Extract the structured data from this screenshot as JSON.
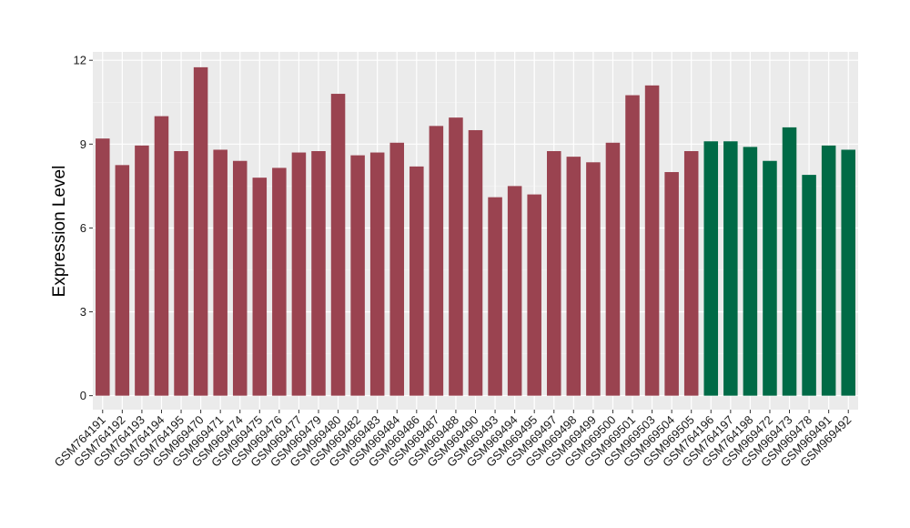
{
  "chart_data": {
    "type": "bar",
    "title": "",
    "xlabel": "",
    "ylabel": "Expression Level",
    "ylim": [
      -0.5,
      12.3
    ],
    "yticks": [
      0,
      3,
      6,
      9,
      12
    ],
    "grid": true,
    "background": "#EBEBEB",
    "colors": {
      "group1": "#9A4350",
      "group2": "#006A46"
    },
    "categories": [
      "GSM764191",
      "GSM764192",
      "GSM764193",
      "GSM764194",
      "GSM764195",
      "GSM969470",
      "GSM969471",
      "GSM969474",
      "GSM969475",
      "GSM969476",
      "GSM969477",
      "GSM969479",
      "GSM969480",
      "GSM969482",
      "GSM969483",
      "GSM969484",
      "GSM969486",
      "GSM969487",
      "GSM969488",
      "GSM969490",
      "GSM969493",
      "GSM969494",
      "GSM969495",
      "GSM969497",
      "GSM969498",
      "GSM969499",
      "GSM969500",
      "GSM969501",
      "GSM969503",
      "GSM969504",
      "GSM969505",
      "GSM764196",
      "GSM764197",
      "GSM764198",
      "GSM969472",
      "GSM969473",
      "GSM969478",
      "GSM969491",
      "GSM969492"
    ],
    "values": [
      9.2,
      8.25,
      8.95,
      10.0,
      8.75,
      11.75,
      8.8,
      8.4,
      7.8,
      8.15,
      8.7,
      8.75,
      10.8,
      8.6,
      8.7,
      9.05,
      8.2,
      9.65,
      9.95,
      9.5,
      7.1,
      7.5,
      7.2,
      8.75,
      8.55,
      8.35,
      9.05,
      10.75,
      11.1,
      8.0,
      8.75,
      9.1,
      9.1,
      8.9,
      8.4,
      9.6,
      7.9,
      8.95,
      8.8
    ],
    "groups": [
      "group1",
      "group1",
      "group1",
      "group1",
      "group1",
      "group1",
      "group1",
      "group1",
      "group1",
      "group1",
      "group1",
      "group1",
      "group1",
      "group1",
      "group1",
      "group1",
      "group1",
      "group1",
      "group1",
      "group1",
      "group1",
      "group1",
      "group1",
      "group1",
      "group1",
      "group1",
      "group1",
      "group1",
      "group1",
      "group1",
      "group1",
      "group2",
      "group2",
      "group2",
      "group2",
      "group2",
      "group2",
      "group2",
      "group2"
    ]
  }
}
